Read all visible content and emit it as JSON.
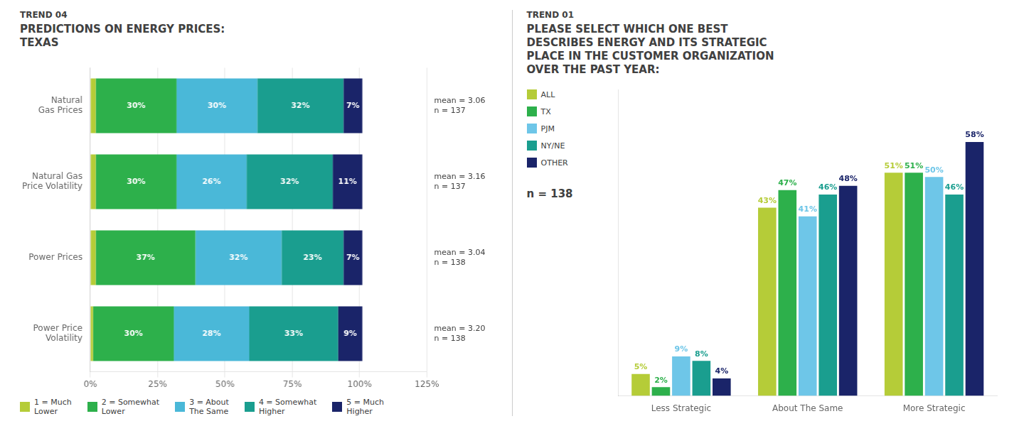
{
  "chart_data": [
    {
      "type": "bar",
      "orientation": "horizontal",
      "stacked": true,
      "subtitle": "TREND 04",
      "title": "PREDICTIONS ON ENERGY PRICES:\nTEXAS",
      "categories": [
        "Natural\nGas Prices",
        "Natural Gas\nPrice Volatility",
        "Power Prices",
        "Power Price\nVolatility"
      ],
      "series": [
        {
          "name": "1 = Much\nLower",
          "color": "#b5cc38",
          "values": [
            2,
            2,
            2,
            1
          ],
          "value_labels": [
            null,
            null,
            null,
            null
          ]
        },
        {
          "name": "2 = Somewhat\nLower",
          "color": "#2db04b",
          "values": [
            30,
            30,
            37,
            30
          ],
          "value_labels": [
            "30%",
            "30%",
            "37%",
            "30%"
          ]
        },
        {
          "name": "3 = About\nThe Same",
          "color": "#4ab8d8",
          "values": [
            30,
            26,
            32,
            28
          ],
          "value_labels": [
            "30%",
            "26%",
            "32%",
            "28%"
          ]
        },
        {
          "name": "4 = Somewhat\nHigher",
          "color": "#1a9e8f",
          "values": [
            32,
            32,
            23,
            33
          ],
          "value_labels": [
            "32%",
            "32%",
            "23%",
            "33%"
          ]
        },
        {
          "name": "5 = Much\nHigher",
          "color": "#1a2469",
          "values": [
            7,
            11,
            7,
            9
          ],
          "value_labels": [
            "7%",
            "11%",
            "7%",
            "9%"
          ]
        }
      ],
      "annotations": [
        "mean = 3.06\nn = 137",
        "mean = 3.16\nn = 137",
        "mean = 3.04\nn = 138",
        "mean = 3.20\nn = 138"
      ],
      "xlim": [
        0,
        125
      ],
      "xticks": [
        {
          "value": 0,
          "label": "0%"
        },
        {
          "value": 25,
          "label": "25%"
        },
        {
          "value": 50,
          "label": "50%"
        },
        {
          "value": 75,
          "label": "75%"
        },
        {
          "value": 100,
          "label": "100%"
        },
        {
          "value": 125,
          "label": "125%"
        }
      ],
      "grid": true,
      "data_labels": true,
      "legend": "bottom"
    },
    {
      "type": "bar",
      "subtitle": "TREND 01",
      "title": "PLEASE SELECT WHICH ONE BEST\nDESCRIBES ENERGY AND ITS STRATEGIC\nPLACE IN THE CUSTOMER ORGANIZATION\nOVER THE PAST YEAR:",
      "annotation": "n = 138",
      "categories": [
        "Less Strategic",
        "About The Same",
        "More Strategic"
      ],
      "series": [
        {
          "name": "ALL",
          "color": "#b5cc38",
          "values": [
            5,
            43,
            51
          ],
          "value_labels": [
            "5%",
            "43%",
            "51%"
          ]
        },
        {
          "name": "TX",
          "color": "#2db04b",
          "values": [
            2,
            47,
            51
          ],
          "value_labels": [
            "2%",
            "47%",
            "51%"
          ]
        },
        {
          "name": "PJM",
          "color": "#6ec6e8",
          "values": [
            9,
            41,
            50
          ],
          "value_labels": [
            "9%",
            "41%",
            "50%"
          ]
        },
        {
          "name": "NY/NE",
          "color": "#1a9e8f",
          "values": [
            8,
            46,
            46
          ],
          "value_labels": [
            "8%",
            "46%",
            "46%"
          ]
        },
        {
          "name": "OTHER",
          "color": "#1a2469",
          "values": [
            4,
            48,
            58
          ],
          "value_labels": [
            "4%",
            "48%",
            "58%"
          ]
        }
      ],
      "ylim": [
        0,
        70
      ],
      "tick_labels": "x",
      "grid": false,
      "data_labels": true,
      "legend": "left"
    }
  ]
}
